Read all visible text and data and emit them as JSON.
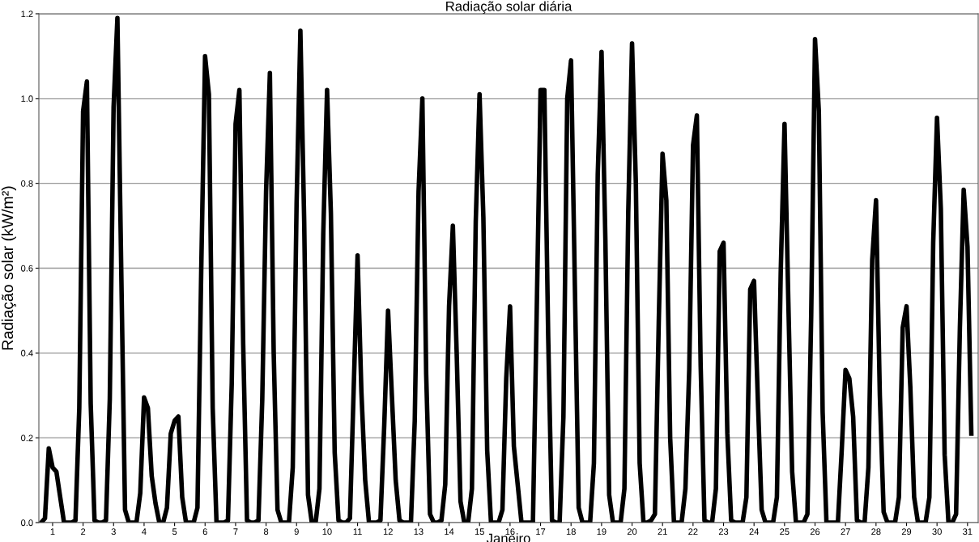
{
  "chart_data": {
    "type": "line",
    "title": "Radiação solar diária",
    "xlabel": "Janeiro",
    "ylabel": "Radiação solar (kW/m²)",
    "x": [
      0.625,
      0.75,
      0.875,
      1,
      1.125,
      1.25,
      1.375,
      1.5,
      1.625,
      1.75,
      1.875,
      2,
      2.125,
      2.25,
      2.375,
      2.5,
      2.625,
      2.75,
      2.875,
      3,
      3.125,
      3.25,
      3.375,
      3.5,
      3.625,
      3.75,
      3.875,
      4,
      4.125,
      4.25,
      4.375,
      4.5,
      4.625,
      4.75,
      4.875,
      5,
      5.125,
      5.25,
      5.375,
      5.5,
      5.625,
      5.75,
      5.875,
      6,
      6.125,
      6.25,
      6.375,
      6.5,
      6.625,
      6.75,
      6.875,
      7,
      7.125,
      7.25,
      7.375,
      7.5,
      7.625,
      7.75,
      7.875,
      8,
      8.125,
      8.25,
      8.375,
      8.5,
      8.625,
      8.75,
      8.875,
      9,
      9.125,
      9.25,
      9.375,
      9.5,
      9.625,
      9.75,
      9.875,
      10,
      10.125,
      10.25,
      10.375,
      10.5,
      10.625,
      10.75,
      10.875,
      11,
      11.125,
      11.25,
      11.375,
      11.5,
      11.625,
      11.75,
      11.875,
      12,
      12.125,
      12.25,
      12.375,
      12.5,
      12.625,
      12.75,
      12.875,
      13,
      13.125,
      13.25,
      13.375,
      13.5,
      13.625,
      13.75,
      13.875,
      14,
      14.125,
      14.25,
      14.375,
      14.5,
      14.625,
      14.75,
      14.875,
      15,
      15.125,
      15.25,
      15.375,
      15.5,
      15.625,
      15.75,
      15.875,
      16,
      16.125,
      16.25,
      16.375,
      16.5,
      16.625,
      16.75,
      16.875,
      17,
      17.125,
      17.25,
      17.375,
      17.5,
      17.625,
      17.75,
      17.875,
      18,
      18.125,
      18.25,
      18.375,
      18.5,
      18.625,
      18.75,
      18.875,
      19,
      19.125,
      19.25,
      19.375,
      19.5,
      19.625,
      19.75,
      19.875,
      20,
      20.125,
      20.25,
      20.375,
      20.5,
      20.625,
      20.75,
      20.875,
      21,
      21.125,
      21.25,
      21.375,
      21.5,
      21.625,
      21.75,
      21.875,
      22,
      22.125,
      22.25,
      22.375,
      22.5,
      22.625,
      22.75,
      22.875,
      23,
      23.125,
      23.25,
      23.375,
      23.5,
      23.625,
      23.75,
      23.875,
      24,
      24.125,
      24.25,
      24.375,
      24.5,
      24.625,
      24.75,
      24.875,
      25,
      25.125,
      25.25,
      25.375,
      25.5,
      25.625,
      25.75,
      25.875,
      26,
      26.125,
      26.25,
      26.375,
      26.5,
      26.625,
      26.75,
      26.875,
      27,
      27.125,
      27.25,
      27.375,
      27.5,
      27.625,
      27.75,
      27.875,
      28,
      28.125,
      28.25,
      28.375,
      28.5,
      28.625,
      28.75,
      28.875,
      29,
      29.125,
      29.25,
      29.375,
      29.5,
      29.625,
      29.75,
      29.875,
      30,
      30.125,
      30.25,
      30.375,
      30.5,
      30.625,
      30.75,
      30.875,
      31,
      31.125
    ],
    "values": [
      0,
      0.01,
      0.175,
      0.13,
      0.12,
      0.06,
      0,
      0,
      0,
      0.005,
      0.27,
      0.97,
      1.04,
      0.28,
      0.005,
      0,
      0,
      0.005,
      0.29,
      0.98,
      1.19,
      0.6,
      0.03,
      0,
      0,
      0,
      0.07,
      0.295,
      0.27,
      0.11,
      0.045,
      0,
      0,
      0.035,
      0.21,
      0.24,
      0.25,
      0.06,
      0,
      0,
      0,
      0.035,
      0.6,
      1.1,
      1.01,
      0.27,
      0,
      0,
      0,
      0.005,
      0.33,
      0.94,
      1.02,
      0.42,
      0.005,
      0,
      0,
      0.005,
      0.29,
      0.78,
      1.06,
      0.4,
      0.03,
      0,
      0,
      0,
      0.13,
      0.75,
      1.16,
      0.71,
      0.065,
      0,
      0,
      0.08,
      0.68,
      1.02,
      0.73,
      0.165,
      0.005,
      0,
      0,
      0.01,
      0.32,
      0.63,
      0.31,
      0.1,
      0,
      0,
      0,
      0.005,
      0.23,
      0.5,
      0.3,
      0.1,
      0.005,
      0,
      0,
      0,
      0.24,
      0.78,
      1.0,
      0.35,
      0.02,
      0,
      0,
      0.005,
      0.09,
      0.51,
      0.7,
      0.4,
      0.05,
      0,
      0,
      0.08,
      0.71,
      1.01,
      0.72,
      0.17,
      0,
      0,
      0,
      0.03,
      0.34,
      0.51,
      0.18,
      0.09,
      0,
      0,
      0,
      0,
      0.5,
      1.02,
      1.02,
      0.44,
      0.005,
      0,
      0,
      0.25,
      1.0,
      1.09,
      0.56,
      0.035,
      0,
      0,
      0,
      0.14,
      0.82,
      1.11,
      0.67,
      0.065,
      0,
      0,
      0,
      0.08,
      0.73,
      1.13,
      0.8,
      0.14,
      0,
      0,
      0.005,
      0.02,
      0.47,
      0.87,
      0.76,
      0.2,
      0,
      0,
      0,
      0.08,
      0.36,
      0.89,
      0.96,
      0.37,
      0.005,
      0,
      0,
      0.08,
      0.64,
      0.66,
      0.21,
      0.005,
      0,
      0,
      0,
      0.06,
      0.55,
      0.57,
      0.29,
      0.03,
      0,
      0,
      0,
      0.06,
      0.59,
      0.94,
      0.52,
      0.12,
      0,
      0,
      0,
      0.02,
      0.49,
      1.14,
      0.97,
      0.26,
      0,
      0,
      0,
      0,
      0.17,
      0.36,
      0.34,
      0.25,
      0.005,
      0,
      0,
      0.13,
      0.62,
      0.76,
      0.3,
      0.025,
      0,
      0,
      0,
      0.06,
      0.46,
      0.51,
      0.32,
      0.06,
      0,
      0,
      0,
      0.06,
      0.66,
      0.955,
      0.74,
      0.16,
      0,
      0,
      0.02,
      0.46,
      0.785,
      0.65,
      0.21
    ],
    "color": "#000000",
    "xlim": [
      0.55,
      31.35
    ],
    "xticks": [
      1,
      2,
      3,
      4,
      5,
      6,
      7,
      8,
      9,
      10,
      11,
      12,
      13,
      14,
      15,
      16,
      17,
      18,
      19,
      20,
      21,
      22,
      23,
      24,
      25,
      26,
      27,
      28,
      29,
      30,
      31
    ],
    "ylim": [
      0,
      1.2
    ],
    "yticks": [
      {
        "value": 0,
        "label": "0.0"
      },
      {
        "value": 0.2,
        "label": "0.2"
      },
      {
        "value": 0.4,
        "label": "0.4"
      },
      {
        "value": 0.6,
        "label": "0.6"
      },
      {
        "value": 0.8,
        "label": "0.8"
      },
      {
        "value": 1.0,
        "label": "1.0"
      },
      {
        "value": 1.2,
        "label": "1.2"
      }
    ],
    "grid": "y",
    "marker": "none",
    "line_style": "solid",
    "legend": false
  }
}
